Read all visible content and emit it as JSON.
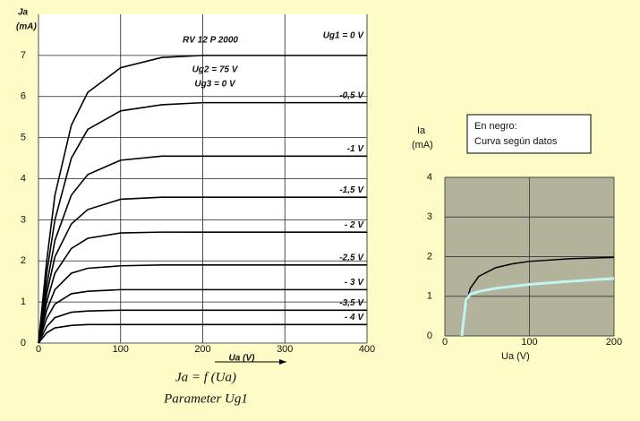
{
  "chart_data": [
    {
      "type": "line",
      "y_label": "Ja",
      "y_unit": "(mA)",
      "x_label": "Ua (V)",
      "annotations": [
        "RV 12 P 2000",
        "Ug2 = 75 V",
        "Ug3 = 0 V"
      ],
      "formula": "Ja = f (Ua)",
      "parameter": "Parameter Ug1",
      "x": [
        0,
        10,
        20,
        40,
        60,
        100,
        150,
        200,
        300,
        400
      ],
      "series": [
        {
          "name": "Ug1 = 0 V",
          "color": "#000000",
          "values": [
            0,
            2.0,
            3.6,
            5.3,
            6.1,
            6.7,
            6.95,
            7.0,
            7.0,
            7.0
          ]
        },
        {
          "name": "-0,5 V",
          "color": "#000000",
          "values": [
            0,
            1.7,
            3.0,
            4.5,
            5.2,
            5.65,
            5.8,
            5.85,
            5.85,
            5.85
          ]
        },
        {
          "name": "-1 V",
          "color": "#000000",
          "values": [
            0,
            1.4,
            2.5,
            3.6,
            4.1,
            4.45,
            4.55,
            4.55,
            4.55,
            4.55
          ]
        },
        {
          "name": "-1,5 V",
          "color": "#000000",
          "values": [
            0,
            1.2,
            2.1,
            2.9,
            3.25,
            3.5,
            3.55,
            3.55,
            3.55,
            3.55
          ]
        },
        {
          "name": "- 2 V",
          "color": "#000000",
          "values": [
            0,
            1.0,
            1.7,
            2.3,
            2.55,
            2.68,
            2.7,
            2.7,
            2.7,
            2.7
          ]
        },
        {
          "name": "-2,5 V",
          "color": "#000000",
          "values": [
            0,
            0.8,
            1.3,
            1.7,
            1.82,
            1.88,
            1.9,
            1.9,
            1.9,
            1.9
          ]
        },
        {
          "name": "- 3 V",
          "color": "#000000",
          "values": [
            0,
            0.6,
            0.95,
            1.2,
            1.26,
            1.3,
            1.3,
            1.3,
            1.3,
            1.3
          ]
        },
        {
          "name": "-3,5 V",
          "color": "#000000",
          "values": [
            0,
            0.4,
            0.62,
            0.75,
            0.78,
            0.8,
            0.8,
            0.8,
            0.8,
            0.8
          ]
        },
        {
          "name": "- 4 V",
          "color": "#000000",
          "values": [
            0,
            0.25,
            0.37,
            0.43,
            0.45,
            0.45,
            0.45,
            0.45,
            0.45,
            0.45
          ]
        }
      ],
      "xlim": [
        0,
        400
      ],
      "xticks": [
        0,
        100,
        200,
        300,
        400
      ],
      "ylim": [
        0,
        8
      ],
      "yticks": [
        0,
        1,
        2,
        3,
        4,
        5,
        6,
        7
      ],
      "grid": true
    },
    {
      "type": "line",
      "y_label": "Ia",
      "y_unit": "(mA)",
      "x_label": "Ua (V)",
      "annotations": [
        "En negro:",
        "Curva según datos"
      ],
      "x": [
        20,
        25,
        30,
        40,
        60,
        80,
        100,
        150,
        200
      ],
      "series": [
        {
          "color": "#000000",
          "values": [
            0,
            0.8,
            1.2,
            1.5,
            1.72,
            1.82,
            1.88,
            1.95,
            1.98
          ]
        },
        {
          "color": "#bff6f4",
          "values": [
            0,
            0.9,
            1.05,
            1.12,
            1.2,
            1.25,
            1.3,
            1.38,
            1.45
          ]
        }
      ],
      "xlim": [
        0,
        200
      ],
      "xticks": [
        0,
        100,
        200
      ],
      "ylim": [
        0,
        4
      ],
      "yticks": [
        0,
        1,
        2,
        3,
        4
      ],
      "grid": true
    }
  ]
}
